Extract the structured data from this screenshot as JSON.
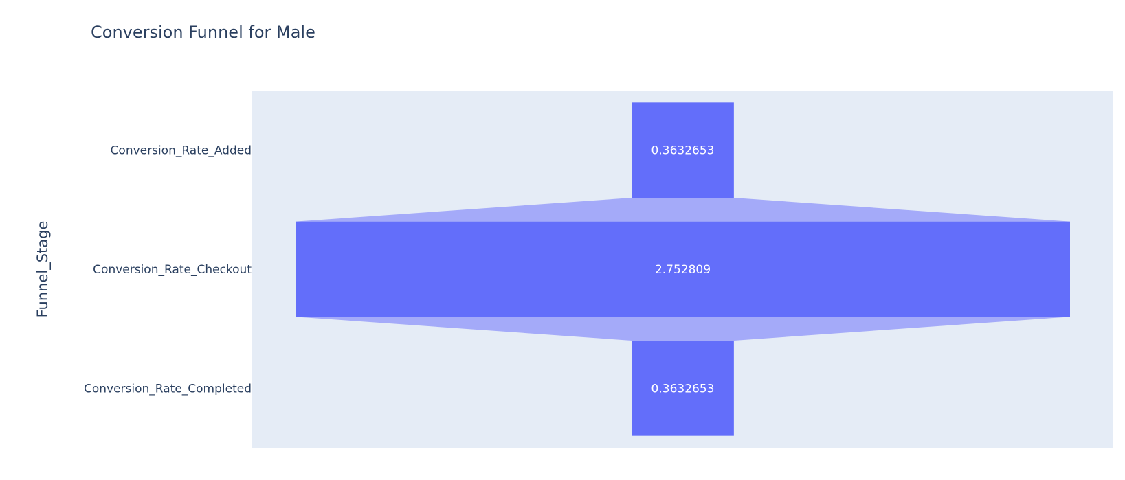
{
  "chart_data": {
    "type": "funnel",
    "title": "Conversion Funnel for Male",
    "ylabel": "Funnel_Stage",
    "xlabel": "",
    "categories": [
      "Conversion_Rate_Added",
      "Conversion_Rate_Checkout",
      "Conversion_Rate_Completed"
    ],
    "values": [
      0.3632653,
      2.752809,
      0.3632653
    ],
    "value_labels": [
      "0.3632653",
      "2.752809",
      "0.3632653"
    ],
    "grid": false,
    "colors": {
      "bar": "#636efa",
      "connector": "#a4aaf9",
      "plot_bg": "#e5ecf6",
      "text": "#2a3f5f",
      "label_text": "#ffffff"
    }
  }
}
